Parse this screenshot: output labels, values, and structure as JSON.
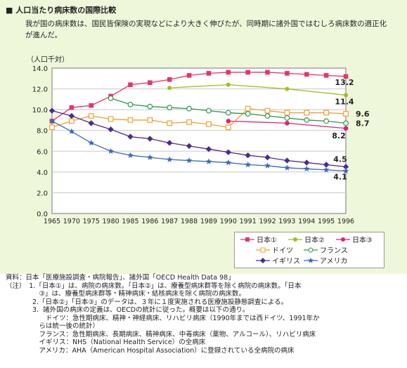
{
  "heading": "■ 人口当たり病床数の国際比較",
  "intro": "我が国の病床数は、国民皆保険の実現などにより大きく伸びたが、同時期に諸外国ではむしろ病床数の適正化が進んだ。",
  "chart_data": {
    "type": "line",
    "ylabel": "（人口千対）",
    "ylim": [
      0,
      14
    ],
    "yticks": [
      "0.0",
      "2.0",
      "4.0",
      "6.0",
      "8.0",
      "10.0",
      "12.0",
      "14.0"
    ],
    "categories": [
      "1965",
      "1970",
      "1975",
      "1980",
      "1985",
      "1986",
      "1987",
      "1988",
      "1989",
      "1990",
      "1991",
      "1992",
      "1993",
      "1994",
      "1995",
      "1996"
    ],
    "grid": true,
    "legend_position": "bottom-right",
    "series": [
      {
        "name": "日本①",
        "color": "#e8336b",
        "marker": "square",
        "values": [
          8.9,
          10.2,
          10.4,
          11.3,
          12.4,
          12.6,
          12.9,
          13.3,
          13.5,
          13.6,
          13.6,
          13.6,
          13.5,
          13.4,
          13.3,
          13.2
        ],
        "end_label": "13.2"
      },
      {
        "name": "日本②",
        "color": "#9ec020",
        "marker": "dot",
        "values": [
          null,
          null,
          null,
          null,
          null,
          null,
          12.1,
          null,
          null,
          12.4,
          null,
          null,
          12.0,
          null,
          null,
          11.4
        ],
        "end_label": "11.4"
      },
      {
        "name": "日本③",
        "color": "#e0207a",
        "marker": "circle",
        "values": [
          null,
          null,
          null,
          null,
          null,
          null,
          null,
          null,
          null,
          8.9,
          null,
          null,
          8.7,
          null,
          null,
          8.2
        ],
        "end_label": "8.2"
      },
      {
        "name": "ドイツ",
        "color": "#f0a030",
        "marker": "open-square",
        "values": [
          8.3,
          8.9,
          9.4,
          9.1,
          9.0,
          9.0,
          8.7,
          8.8,
          8.6,
          8.3,
          10.1,
          9.9,
          9.7,
          9.7,
          9.7,
          9.6
        ],
        "end_label": "9.6"
      },
      {
        "name": "フランス",
        "color": "#2a9a50",
        "marker": "open-circle",
        "values": [
          null,
          null,
          null,
          11.1,
          10.5,
          10.3,
          10.2,
          10.1,
          9.9,
          9.7,
          9.6,
          9.4,
          9.2,
          9.0,
          8.9,
          8.7
        ],
        "end_label": "8.7"
      },
      {
        "name": "イギリス",
        "color": "#4a2a90",
        "marker": "diamond",
        "values": [
          9.9,
          9.4,
          8.7,
          8.1,
          7.4,
          7.2,
          6.8,
          6.5,
          6.2,
          5.9,
          5.6,
          5.4,
          5.1,
          4.9,
          4.7,
          4.5
        ],
        "end_label": "4.5"
      },
      {
        "name": "アメリカ",
        "color": "#3a6ab8",
        "marker": "star",
        "values": [
          8.9,
          7.9,
          6.8,
          6.0,
          5.6,
          5.4,
          5.2,
          5.1,
          5.0,
          4.9,
          4.7,
          4.6,
          4.4,
          4.3,
          4.2,
          4.1
        ],
        "end_label": "4.1"
      }
    ]
  },
  "notes": [
    "資料：日本「医療施設調査・病院報告」、諸外国「OECD Health Data 98」",
    "（注）　1.「日本①」は、病院の病床数。「日本②」は、療養型病床群等を除く病院の病床数。「日本",
    "　　　　　③」は、療養型病床群等・精神病床・結核病床を除く病院の病床数。",
    "　　　　2.「日本②」「日本③」のデータは、３年に１度実施される医療施設静態調査による。",
    "　　　　3.  諸外国の病床の定義は、OECDの統計に従った。概要は以下の通り。",
    "　　　　　　ドイツ：急性期病床、精神・神経病床、リハビリ病床（1990年までは西ドイツ、1991年か",
    "　　　　　らは統一後の統計）",
    "　　　　　フランス：急性期病床、長期病床、精神病床、中毒病床（薬物、アルコール）、リハビリ病床",
    "　　　　　イギリス：NHS（National Health Service）の全病床",
    "　　　　　アメリカ：AHA（American Hospital Association）に登録されている全病院の病床"
  ]
}
